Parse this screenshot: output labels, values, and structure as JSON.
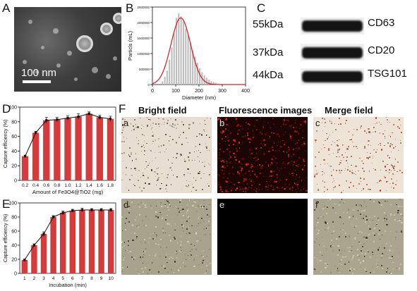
{
  "panels": {
    "a": {
      "letter": "A",
      "scale_label": "100 nm"
    },
    "b": {
      "letter": "B"
    },
    "c": {
      "letter": "C"
    },
    "d": {
      "letter": "D"
    },
    "e": {
      "letter": "E"
    },
    "f": {
      "letter": "F"
    }
  },
  "western_blot": [
    {
      "kda": "55kDa",
      "protein": "CD63"
    },
    {
      "kda": "37kDa",
      "protein": "CD20"
    },
    {
      "kda": "44kDa",
      "protein": "TSG101"
    }
  ],
  "microscopy": {
    "headers": [
      "Bright field",
      "Fluorescence images",
      "Merge field"
    ],
    "labels": [
      "a",
      "b",
      "c",
      "d",
      "e",
      "f"
    ]
  },
  "colors": {
    "bar": "#d63a3a",
    "curve": "#d8252b",
    "hist": "#bdbdbd",
    "line": "#111111"
  },
  "chart_data": [
    {
      "type": "bar",
      "id": "B",
      "xlabel": "Diameter (nm)",
      "ylabel": "Particls (mL)",
      "xlim": [
        0,
        400
      ],
      "ylim": [
        0,
        2500000
      ],
      "xticks": [
        "0",
        "100",
        "200",
        "300",
        "400"
      ],
      "yticks": [
        "0",
        "500000",
        "1000000",
        "1500000",
        "2000000",
        "2500000"
      ],
      "bin_width": 10,
      "x": [
        40,
        50,
        60,
        70,
        80,
        90,
        100,
        110,
        120,
        130,
        140,
        150,
        160,
        170,
        180,
        190,
        200,
        210,
        220,
        230,
        240,
        250,
        260,
        270,
        280
      ],
      "values": [
        100000,
        250000,
        450000,
        800000,
        1200000,
        1650000,
        2150000,
        2300000,
        2200000,
        2050000,
        1800000,
        1600000,
        1350000,
        1100000,
        900000,
        700000,
        520000,
        400000,
        300000,
        220000,
        160000,
        110000,
        80000,
        50000,
        30000
      ],
      "fit": {
        "type": "gaussian",
        "peak": 2150000,
        "center": 122,
        "sigma": 42
      }
    },
    {
      "type": "bar",
      "id": "D",
      "xlabel": "Amount of Fe3O4@TiO2 (mg)",
      "ylabel": "Capture efficiency (%)",
      "ylim": [
        0,
        100
      ],
      "yticks": [
        "0",
        "20",
        "40",
        "60",
        "80",
        "100"
      ],
      "categories": [
        "0.2",
        "0.4",
        "0.6",
        "0.8",
        "1.0",
        "1.2",
        "1.4",
        "1.6",
        "1.8"
      ],
      "values": [
        33,
        65,
        82,
        83,
        85,
        87,
        91,
        86,
        84
      ],
      "errors": [
        1.5,
        2,
        4,
        3,
        3,
        4,
        2.5,
        3,
        3.5
      ]
    },
    {
      "type": "bar",
      "id": "E",
      "xlabel": "Incubation (min)",
      "ylabel": "Capture efficiency (%)",
      "ylim": [
        0,
        100
      ],
      "yticks": [
        "0",
        "20",
        "40",
        "60",
        "80",
        "100"
      ],
      "categories": [
        "1",
        "2",
        "3",
        "4",
        "5",
        "6",
        "7",
        "8",
        "9",
        "10"
      ],
      "values": [
        19,
        40,
        56,
        80,
        86,
        89,
        90,
        90,
        90,
        90
      ],
      "errors": [
        1.5,
        2,
        3,
        2,
        2.5,
        2,
        2.5,
        2,
        2,
        2
      ]
    }
  ]
}
